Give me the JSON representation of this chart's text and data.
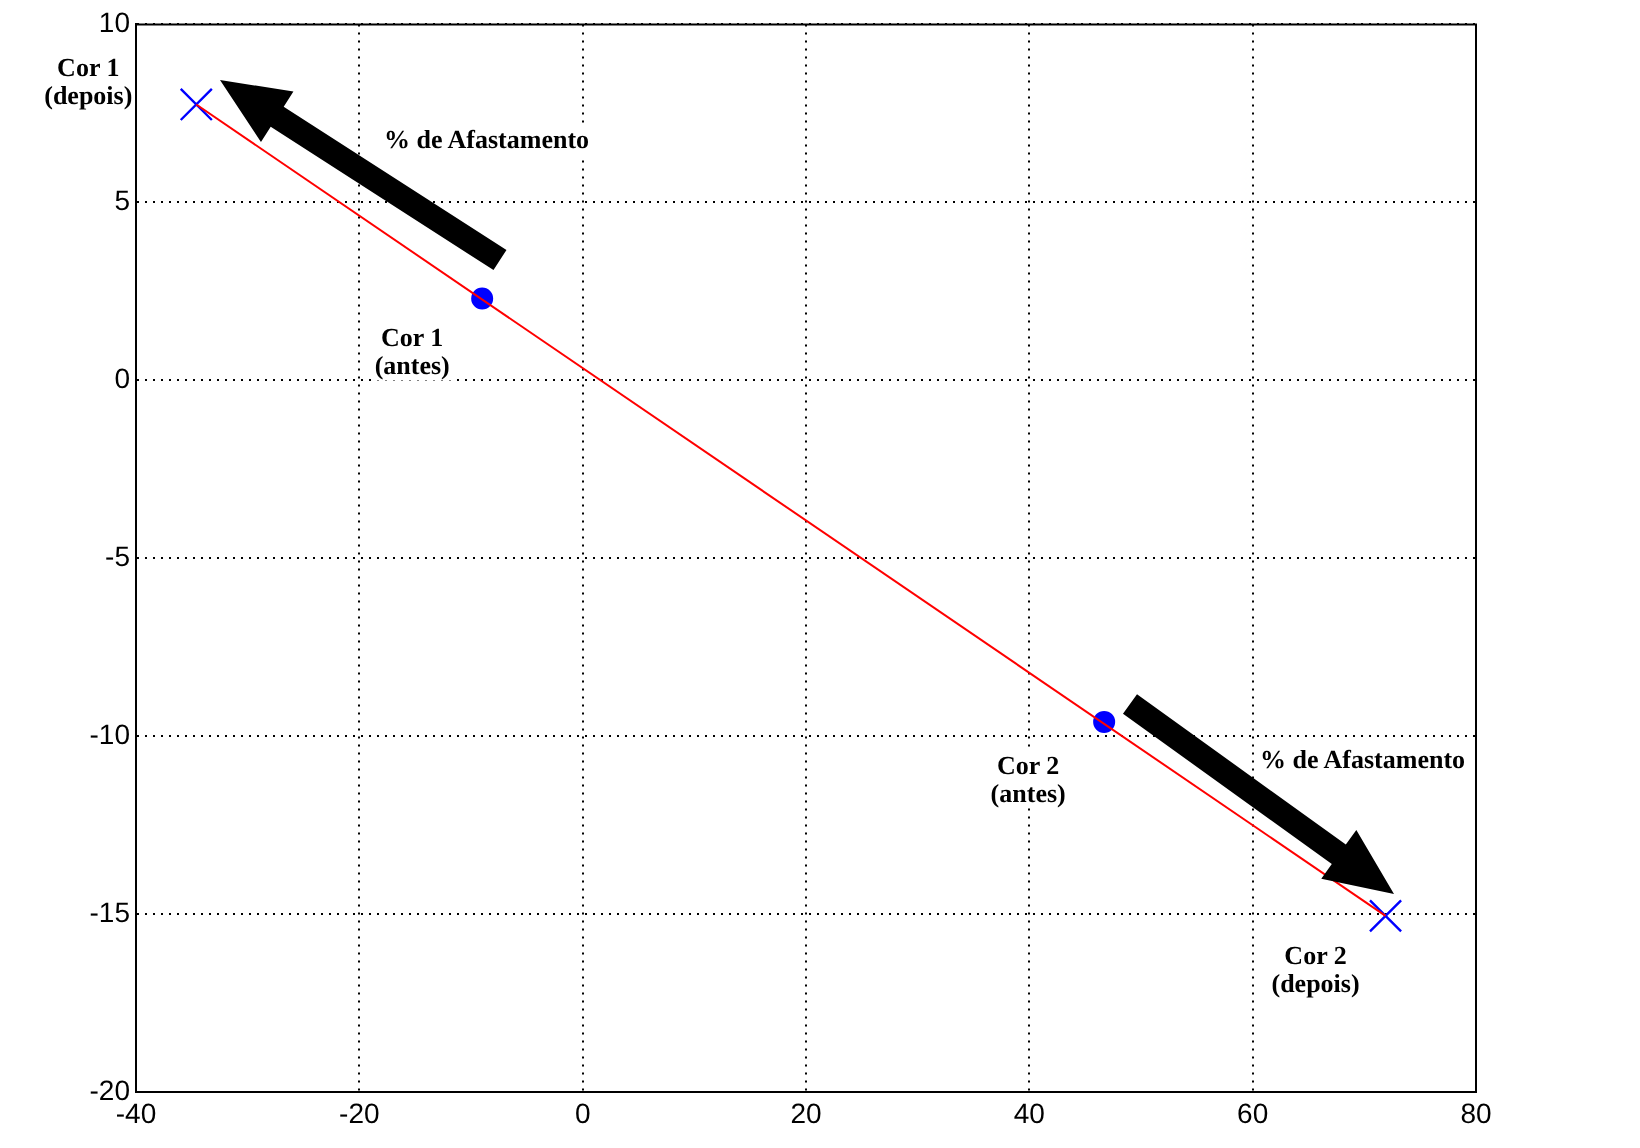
{
  "chart_data": {
    "type": "scatter",
    "legend": false,
    "grid": true,
    "xlim": [
      -40,
      80
    ],
    "xticks": [
      -40,
      -20,
      0,
      20,
      40,
      60,
      80
    ],
    "ylim": [
      -20,
      10
    ],
    "yticks": [
      -20,
      -15,
      -10,
      -5,
      0,
      5,
      10
    ],
    "series": [
      {
        "type": "line",
        "color": "#ff0000",
        "marker": "none",
        "line_style": "solid",
        "x": [
          -34.6,
          71.9
        ],
        "values": [
          7.75,
          -15.05
        ]
      },
      {
        "type": "scatter",
        "color": "#0000ff",
        "marker": "circle",
        "x": [
          -9.0,
          46.7
        ],
        "values": [
          2.3,
          -9.6
        ]
      },
      {
        "type": "scatter",
        "color": "#0000ff",
        "marker": "cross",
        "x": [
          -34.6,
          71.9
        ],
        "values": [
          7.75,
          -15.05
        ]
      }
    ],
    "annotations": [
      {
        "text": "Cor 1 (depois)",
        "x": -34.6,
        "y": 7.75
      },
      {
        "text": "Cor 1 (antes)",
        "x": -9.0,
        "y": 2.3
      },
      {
        "text": "Cor 2 (antes)",
        "x": 46.7,
        "y": -9.6
      },
      {
        "text": "Cor 2 (depois)",
        "x": 71.9,
        "y": -15.05
      },
      "% de Afastamento",
      "% de Afastamento"
    ]
  }
}
